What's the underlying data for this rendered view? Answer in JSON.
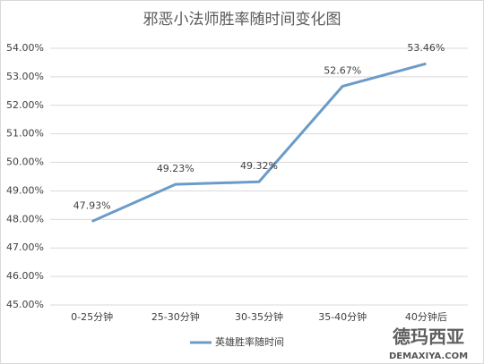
{
  "chart_data": {
    "type": "line",
    "title": "邪恶小法师胜率随时间变化图",
    "categories": [
      "0-25分钟",
      "25-30分钟",
      "30-35分钟",
      "35-40分钟",
      "40分钟后"
    ],
    "series": [
      {
        "name": "英雄胜率随时间",
        "color": "#6b9bc8",
        "values": [
          47.93,
          49.23,
          49.32,
          52.67,
          53.46
        ],
        "value_labels": [
          "47.93%",
          "49.23%",
          "49.32%",
          "52.67%",
          "53.46%"
        ]
      }
    ],
    "ylim": [
      45,
      54
    ],
    "yticks": [
      {
        "value": 45,
        "label": "45.00%"
      },
      {
        "value": 46,
        "label": "46.00%"
      },
      {
        "value": 47,
        "label": "47.00%"
      },
      {
        "value": 48,
        "label": "48.00%"
      },
      {
        "value": 49,
        "label": "49.00%"
      },
      {
        "value": 50,
        "label": "50.00%"
      },
      {
        "value": 51,
        "label": "51.00%"
      },
      {
        "value": 52,
        "label": "52.00%"
      },
      {
        "value": 53,
        "label": "53.00%"
      },
      {
        "value": 54,
        "label": "54.00%"
      }
    ],
    "grid": true,
    "legend": "bottom",
    "watermark": [
      "德玛西亚",
      "DEMAXIYA.COM"
    ]
  }
}
